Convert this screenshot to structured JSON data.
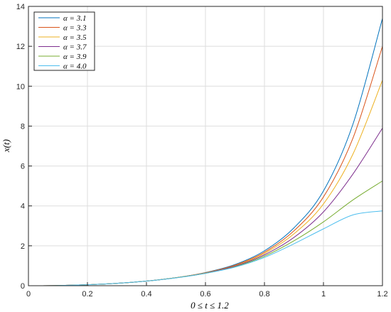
{
  "chart_data": {
    "type": "line",
    "xlabel": "0 ≤ t ≤ 1.2",
    "ylabel": "x(t)",
    "xlim": [
      0,
      1.2
    ],
    "ylim": [
      0,
      14
    ],
    "xticks": [
      0,
      0.2,
      0.4,
      0.6,
      0.8,
      1,
      1.2
    ],
    "xtick_labels": [
      "0",
      "0.2",
      "0.4",
      "0.6",
      "0.8",
      "1",
      "1.2"
    ],
    "yticks": [
      0,
      2,
      4,
      6,
      8,
      10,
      12,
      14
    ],
    "ytick_labels": [
      "0",
      "2",
      "4",
      "6",
      "8",
      "10",
      "12",
      "14"
    ],
    "grid": true,
    "legend_position": "top-left",
    "x": [
      0,
      0.1,
      0.2,
      0.3,
      0.4,
      0.5,
      0.6,
      0.7,
      0.8,
      0.9,
      1.0,
      1.1,
      1.2
    ],
    "series": [
      {
        "name": "α = 3.1",
        "color": "#0072BD",
        "values": [
          0,
          0.01,
          0.05,
          0.12,
          0.23,
          0.4,
          0.66,
          1.06,
          1.75,
          2.9,
          4.75,
          8.1,
          13.4
        ]
      },
      {
        "name": "α = 3.3",
        "color": "#D95319",
        "values": [
          0,
          0.01,
          0.05,
          0.12,
          0.23,
          0.4,
          0.65,
          1.03,
          1.68,
          2.75,
          4.45,
          7.4,
          12.0
        ]
      },
      {
        "name": "α = 3.5",
        "color": "#EDB120",
        "values": [
          0,
          0.01,
          0.05,
          0.12,
          0.23,
          0.4,
          0.64,
          1.0,
          1.62,
          2.6,
          4.1,
          6.6,
          10.3
        ]
      },
      {
        "name": "α = 3.7",
        "color": "#7E2F8E",
        "values": [
          0,
          0.01,
          0.05,
          0.12,
          0.23,
          0.4,
          0.63,
          0.98,
          1.55,
          2.42,
          3.7,
          5.6,
          7.9
        ]
      },
      {
        "name": "α = 3.9",
        "color": "#77AC30",
        "values": [
          0,
          0.01,
          0.05,
          0.12,
          0.23,
          0.4,
          0.62,
          0.95,
          1.48,
          2.25,
          3.2,
          4.3,
          5.25
        ]
      },
      {
        "name": "α = 4.0",
        "color": "#4DBEEE",
        "values": [
          0,
          0.01,
          0.05,
          0.12,
          0.23,
          0.39,
          0.62,
          0.93,
          1.42,
          2.1,
          2.85,
          3.55,
          3.75
        ]
      }
    ]
  }
}
